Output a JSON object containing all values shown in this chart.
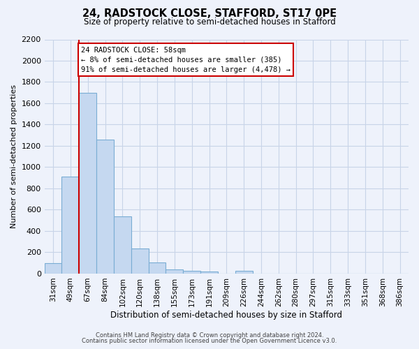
{
  "title": "24, RADSTOCK CLOSE, STAFFORD, ST17 0PE",
  "subtitle": "Size of property relative to semi-detached houses in Stafford",
  "xlabel": "Distribution of semi-detached houses by size in Stafford",
  "ylabel": "Number of semi-detached properties",
  "bar_labels": [
    "31sqm",
    "49sqm",
    "67sqm",
    "84sqm",
    "102sqm",
    "120sqm",
    "138sqm",
    "155sqm",
    "173sqm",
    "191sqm",
    "209sqm",
    "226sqm",
    "244sqm",
    "262sqm",
    "280sqm",
    "297sqm",
    "315sqm",
    "333sqm",
    "351sqm",
    "368sqm",
    "386sqm"
  ],
  "bar_values": [
    100,
    910,
    1700,
    1260,
    540,
    235,
    105,
    40,
    25,
    20,
    0,
    25,
    0,
    0,
    0,
    0,
    0,
    0,
    0,
    0,
    0
  ],
  "bar_color": "#c5d8f0",
  "bar_edge_color": "#7aadd4",
  "grid_color": "#c8d4e8",
  "background_color": "#eef2fb",
  "marker_line_color": "#cc0000",
  "annotation_line1": "24 RADSTOCK CLOSE: 58sqm",
  "annotation_line2": "← 8% of semi-detached houses are smaller (385)",
  "annotation_line3": "91% of semi-detached houses are larger (4,478) →",
  "annotation_box_color": "#ffffff",
  "annotation_box_edge": "#cc0000",
  "ylim": [
    0,
    2200
  ],
  "yticks": [
    0,
    200,
    400,
    600,
    800,
    1000,
    1200,
    1400,
    1600,
    1800,
    2000,
    2200
  ],
  "footer_line1": "Contains HM Land Registry data © Crown copyright and database right 2024.",
  "footer_line2": "Contains public sector information licensed under the Open Government Licence v3.0."
}
